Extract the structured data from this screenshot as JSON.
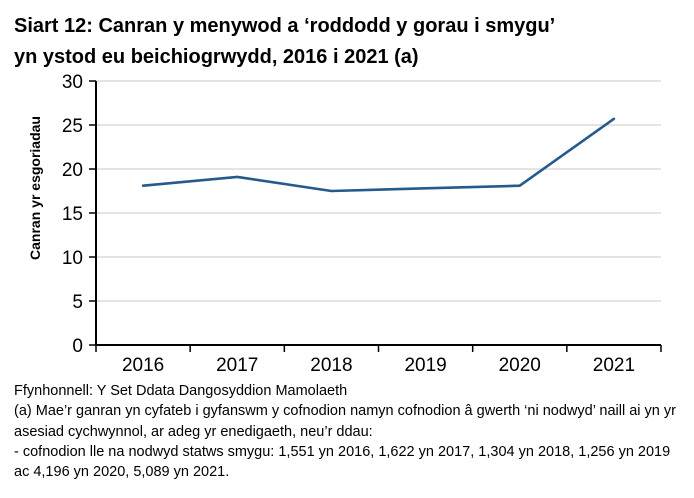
{
  "title": {
    "line1": "Siart 12: Canran y menywod a ‘roddodd y gorau i smygu’",
    "line2": "yn ystod eu beichiogrwydd, 2016 i 2021 (a)"
  },
  "chart_data": {
    "type": "line",
    "categories": [
      "2016",
      "2017",
      "2018",
      "2019",
      "2020",
      "2021"
    ],
    "values": [
      18.1,
      19.1,
      17.5,
      17.8,
      18.1,
      25.7
    ],
    "title": "Siart 12: Canran y menywod a ‘roddodd y gorau i smygu’ yn ystod eu beichiogrwydd, 2016 i 2021 (a)",
    "xlabel": "",
    "ylabel": "Canran yr esgoriadau",
    "ylim": [
      0,
      30
    ],
    "yticks": [
      0,
      5,
      10,
      15,
      20,
      25,
      30
    ],
    "grid": "horizontal",
    "legend": "none"
  },
  "colors": {
    "line": "#265A8C",
    "gridline": "#D3D3D3",
    "axis": "#000000",
    "text": "#000000"
  },
  "footer": {
    "source": "Ffynhonnell: Y Set Ddata Dangosyddion Mamolaeth",
    "note_a": "(a) Mae’r ganran yn cyfateb i gyfanswm y cofnodion namyn cofnodion â gwerth ‘ni nodwyd’ naill ai yn yr asesiad cychwynnol, ar adeg yr enedigaeth, neu’r ddau:",
    "note_b": "- cofnodion lle na nodwyd statws smygu: 1,551 yn 2016, 1,622 yn 2017, 1,304 yn 2018, 1,256 yn 2019 ac 4,196 yn 2020, 5,089 yn 2021."
  }
}
